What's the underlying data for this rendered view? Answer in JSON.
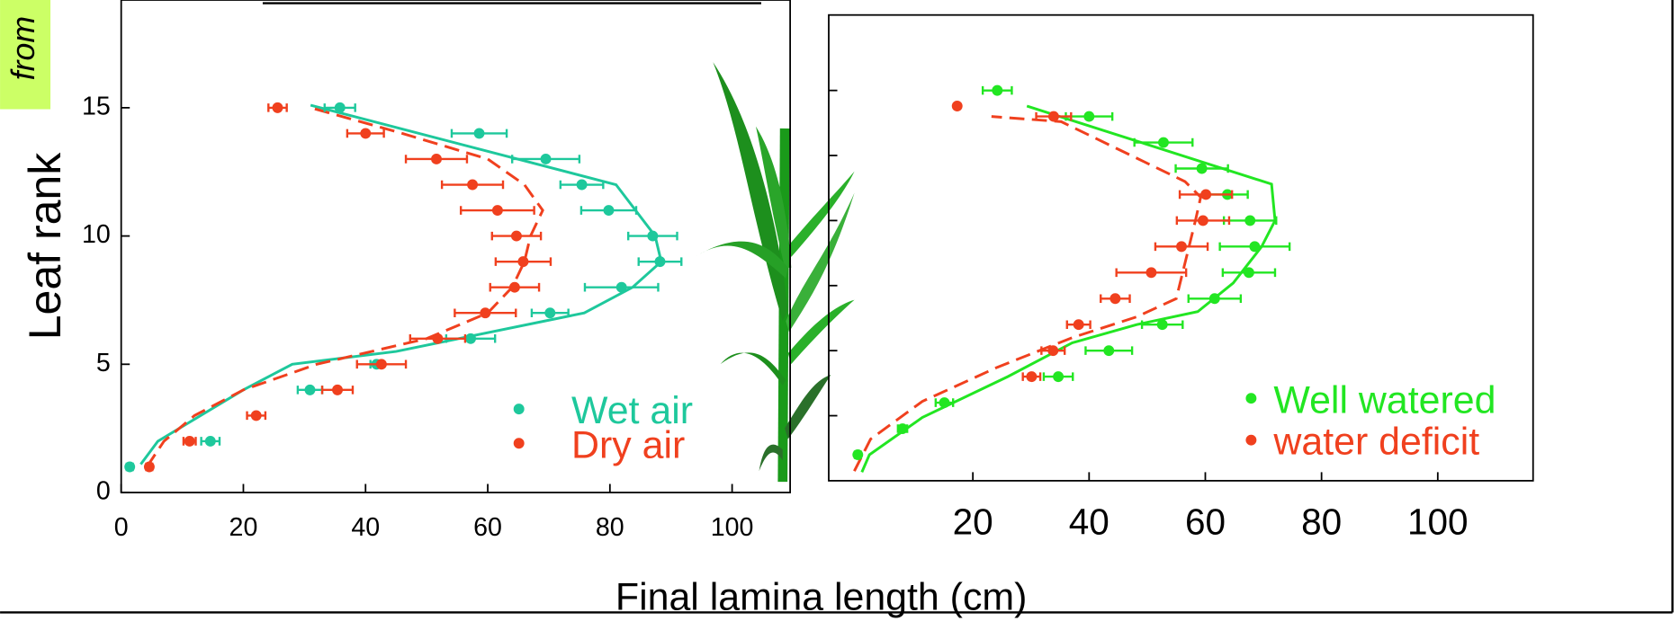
{
  "side_note": "from",
  "xlabel": "Final lamina length (cm)",
  "chart_data": [
    {
      "type": "scatter",
      "ylabel": "Leaf rank",
      "xlim": [
        0,
        109.5
      ],
      "ylim": [
        0,
        19.2
      ],
      "xticks": [
        0,
        20,
        40,
        60,
        80,
        100
      ],
      "yticks": [
        0,
        5,
        10,
        15
      ],
      "show_ytick_labels": true,
      "legend": "lower right",
      "series": [
        {
          "name": "Wet air",
          "color": "#1ec89c",
          "y": [
            1,
            2,
            4,
            5,
            6,
            7,
            8,
            9,
            10,
            11,
            12,
            13,
            14,
            15
          ],
          "x": [
            1.4,
            14.6,
            30.9,
            41.8,
            57.2,
            70.2,
            81.9,
            88.2,
            87,
            79.8,
            75.4,
            69.5,
            58.6,
            35.8
          ],
          "xerr": [
            0.5,
            1.5,
            2,
            1,
            4,
            3,
            6,
            3.5,
            4,
            4.5,
            3.5,
            5.5,
            4.5,
            2.5
          ]
        },
        {
          "name": "Dry air",
          "color": "#f0401e",
          "y": [
            1,
            2,
            3,
            4,
            5,
            6,
            7,
            8,
            9,
            10,
            11,
            12,
            13,
            14,
            15
          ],
          "x": [
            4.6,
            11.2,
            22.1,
            35.4,
            42.6,
            51.8,
            59.6,
            64.4,
            65.8,
            64.7,
            61.6,
            57.5,
            51.6,
            40,
            25.6
          ],
          "xerr": [
            0.5,
            1,
            1.5,
            2.5,
            4,
            4.5,
            5,
            4,
            4.5,
            4,
            6,
            5,
            5,
            3,
            1.5
          ]
        }
      ],
      "fits": [
        {
          "color": "#1ec89c",
          "dashed": false,
          "y": [
            1.1,
            2,
            4,
            5,
            5.5,
            7,
            8,
            9,
            10,
            12,
            15.1
          ],
          "x": [
            3.2,
            6,
            20,
            28,
            45,
            75.8,
            83.7,
            88.4,
            87.4,
            81,
            31
          ]
        },
        {
          "color": "#f0401e",
          "dashed": true,
          "y": [
            1,
            2,
            3,
            4,
            5,
            6,
            7,
            8,
            9,
            10,
            11,
            12,
            13,
            14,
            15
          ],
          "x": [
            4.2,
            7,
            12,
            20,
            32,
            50,
            60,
            64,
            66,
            67,
            69,
            66,
            60,
            46,
            31
          ]
        }
      ]
    },
    {
      "type": "scatter",
      "xlim": [
        -4.8,
        116.4
      ],
      "ylim": [
        0,
        17.9
      ],
      "xticks": [
        20,
        40,
        60,
        80,
        100
      ],
      "yticks": [
        2.5,
        5,
        7.5,
        10,
        12.5,
        15
      ],
      "show_ytick_labels": false,
      "legend": "lower right",
      "series": [
        {
          "name": "Well watered",
          "color": "#22e622",
          "y": [
            1,
            2,
            3,
            4,
            5,
            6,
            7,
            8,
            9,
            10,
            11,
            12,
            13,
            14,
            15
          ],
          "x": [
            0.2,
            7.9,
            15.1,
            34.7,
            43.4,
            52.6,
            61.6,
            67.5,
            68.5,
            67.7,
            63.8,
            59.4,
            52.8,
            40,
            24.2
          ],
          "xerr": [
            0.5,
            0.8,
            1.5,
            2.5,
            4,
            3.5,
            4.5,
            4.5,
            6,
            4.5,
            3.5,
            4.5,
            5,
            4,
            2.5
          ]
        },
        {
          "name": "water deficit",
          "color": "#f0401e",
          "y": [
            4,
            5,
            6,
            7,
            8,
            9,
            10,
            11,
            14,
            14.4
          ],
          "x": [
            30.1,
            33.8,
            38.2,
            44.5,
            50.7,
            55.9,
            59.6,
            60.1,
            33.9,
            17.3
          ],
          "xerr": [
            1.5,
            2,
            2,
            2.5,
            6,
            4.5,
            4.5,
            4.5,
            3,
            null
          ]
        }
      ],
      "fits": [
        {
          "color": "#22e622",
          "dashed": false,
          "y": [
            0.33,
            1,
            2.43,
            4,
            5.3,
            6,
            6.5,
            7.6,
            9,
            10,
            11.4,
            14.4
          ],
          "x": [
            0.9,
            2.2,
            11.3,
            26,
            37.1,
            48.2,
            58.7,
            64.8,
            69.7,
            72,
            71.4,
            29.3
          ]
        },
        {
          "color": "#f0401e",
          "dashed": true,
          "y": [
            0.37,
            1.6,
            3.05,
            4.36,
            5.5,
            6.3,
            7,
            10,
            10.9,
            11.5,
            13.8,
            14
          ],
          "x": [
            -0.4,
            2.4,
            11.3,
            24.2,
            37.1,
            48.2,
            55,
            58.3,
            59.2,
            56.5,
            35.2,
            23.2
          ]
        }
      ]
    }
  ]
}
